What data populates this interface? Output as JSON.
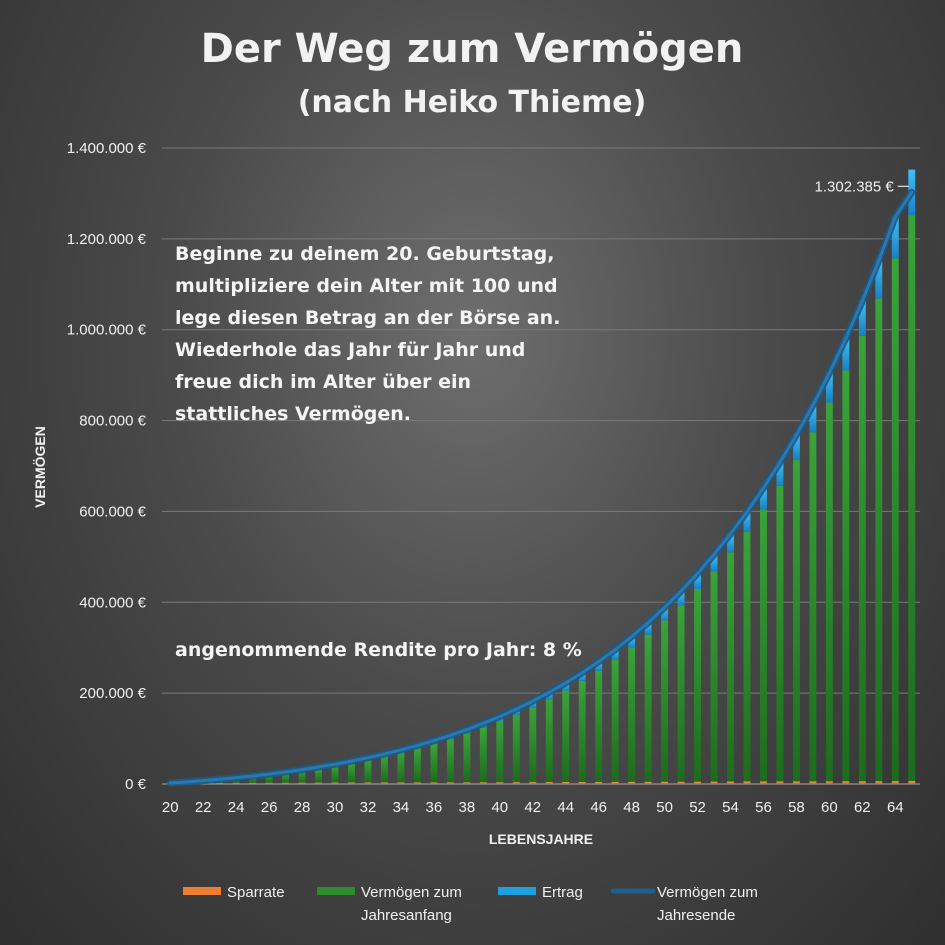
{
  "chart_data": {
    "type": "bar",
    "title": "Der Weg zum Vermögen",
    "subtitle": "(nach Heiko Thieme)",
    "xlabel": "LEBENSJAHRE",
    "ylabel": "VERMÖGEN",
    "ylim": [
      0,
      1400000
    ],
    "y_ticks": [
      0,
      200000,
      400000,
      600000,
      800000,
      1000000,
      1200000,
      1400000
    ],
    "y_tick_labels": [
      "0 €",
      "200.000 €",
      "400.000 €",
      "600.000 €",
      "800.000 €",
      "1.000.000 €",
      "1.200.000 €",
      "1.400.000 €"
    ],
    "x_tick_labels": [
      "20",
      "22",
      "24",
      "26",
      "28",
      "30",
      "32",
      "34",
      "36",
      "38",
      "40",
      "42",
      "44",
      "46",
      "48",
      "50",
      "52",
      "54",
      "56",
      "58",
      "60",
      "62",
      "64"
    ],
    "categories": [
      20,
      21,
      22,
      23,
      24,
      25,
      26,
      27,
      28,
      29,
      30,
      31,
      32,
      33,
      34,
      35,
      36,
      37,
      38,
      39,
      40,
      41,
      42,
      43,
      44,
      45,
      46,
      47,
      48,
      49,
      50,
      51,
      52,
      53,
      54,
      55,
      56,
      57,
      58,
      59,
      60,
      61,
      62,
      63,
      64,
      65
    ],
    "stacked": true,
    "grid": true,
    "legend_position": "bottom",
    "series": [
      {
        "name": "Sparrate",
        "type": "bar",
        "color": "#ed7d31",
        "values": [
          2000,
          2100,
          2200,
          2300,
          2400,
          2500,
          2600,
          2700,
          2800,
          2900,
          3000,
          3100,
          3200,
          3300,
          3400,
          3500,
          3600,
          3700,
          3800,
          3900,
          4000,
          4100,
          4200,
          4300,
          4400,
          4500,
          4600,
          4700,
          4800,
          4900,
          5000,
          5100,
          5200,
          5300,
          5400,
          5500,
          5600,
          5700,
          5800,
          5900,
          6000,
          6100,
          6200,
          6300,
          6400,
          6500
        ]
      },
      {
        "name": "Vermögen zum Jahresanfang",
        "type": "bar",
        "color": "#2e8b2e",
        "values": [
          0,
          2160,
          4601,
          7338,
          10409,
          13838,
          17645,
          21864,
          26529,
          31675,
          37344,
          43573,
          50409,
          57899,
          66092,
          75044,
          84827,
          95498,
          107129,
          119795,
          133571,
          148540,
          164802,
          182439,
          201570,
          222315,
          244800,
          269152,
          295516,
          324036,
          354847,
          388116,
          424047,
          462835,
          504677,
          549796,
          598451,
          650875,
          707360,
          768184,
          833709,
          904286,
          980320,
          1062250,
          1150569,
          1245758
        ]
      },
      {
        "name": "Ertrag",
        "type": "bar",
        "color": "#1ca0e0",
        "values": [
          160,
          333,
          544,
          771,
          1029,
          1307,
          1619,
          1965,
          2346,
          2766,
          3227,
          3735,
          4289,
          4896,
          5559,
          6283,
          7075,
          7936,
          8874,
          9895,
          11006,
          12211,
          13516,
          14931,
          16462,
          18114,
          19952,
          21909,
          24024,
          26312,
          28787,
          31449,
          34340,
          37438,
          40806,
          44424,
          48324,
          52528,
          57052,
          61922,
          67177,
          72827,
          78906,
          85444,
          92563,
          100183
        ]
      },
      {
        "name": "Vermögen zum Jahresende",
        "type": "line",
        "color": "#1f5f8b",
        "values": [
          2160,
          4593,
          7345,
          10409,
          13838,
          17645,
          21864,
          26529,
          31675,
          37341,
          43571,
          50408,
          57898,
          66095,
          75051,
          84827,
          95502,
          107134,
          119803,
          133595,
          148577,
          164851,
          182518,
          201670,
          222432,
          244929,
          269352,
          295761,
          324340,
          355248,
          388635,
          424665,
          463505,
          505341,
          550607,
          599231,
          651775,
          708103,
          768512,
          833922,
          904886,
          981213,
          1063426,
          1152194,
          1248383,
          1302385
        ]
      }
    ],
    "annotations": [
      {
        "text": "1.302.385 €"
      },
      {
        "lines": [
          "Beginne zu deinem 20. Geburtstag,",
          "multipliziere dein Alter mit 100 und",
          "lege diesen Betrag an der Börse an.",
          "Wiederhole das Jahr für Jahr und",
          "freue dich im Alter über ein",
          "stattliches Vermögen."
        ]
      },
      {
        "text": "angenommende Rendite pro Jahr: 8 %"
      }
    ]
  }
}
